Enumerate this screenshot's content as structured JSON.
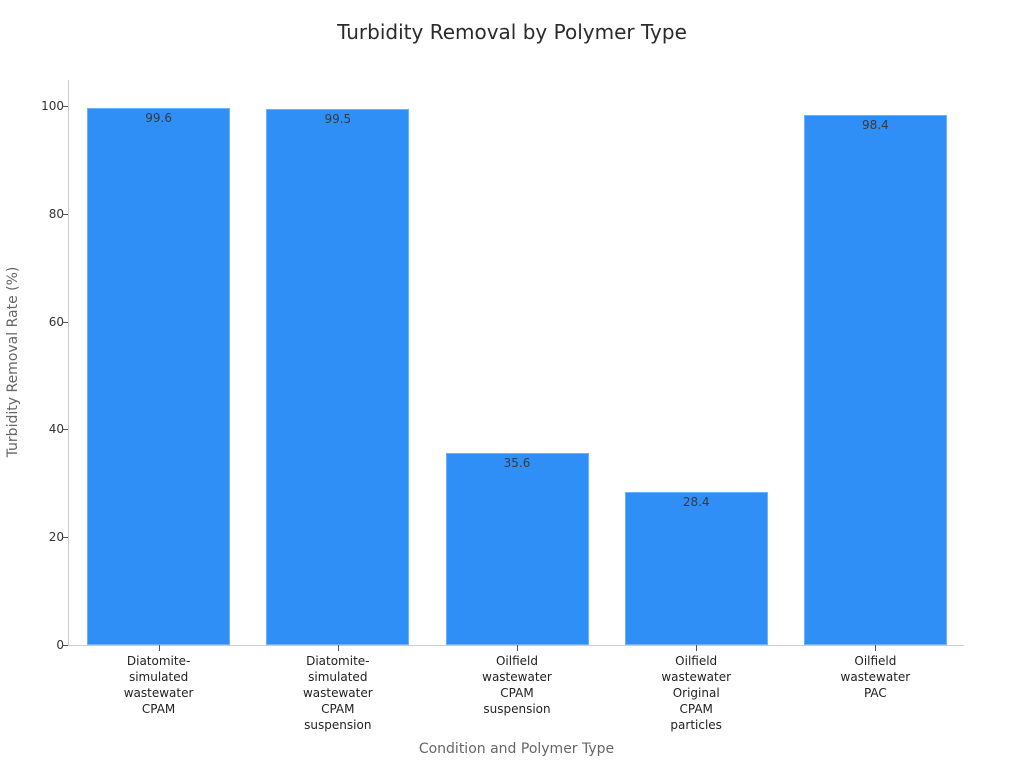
{
  "chart_data": {
    "type": "bar",
    "title": "Turbidity Removal by Polymer Type",
    "xlabel": "Condition and Polymer Type",
    "ylabel": "Turbidity Removal Rate (%)",
    "categories": [
      "Diatomite-\nsimulated\nwastewater\nCPAM",
      "Diatomite-\nsimulated\nwastewater\nCPAM\nsuspension",
      "Oilfield\nwastewater\nCPAM\nsuspension",
      "Oilfield\nwastewater\nOriginal\nCPAM\nparticles",
      "Oilfield\nwastewater\nPAC"
    ],
    "values": [
      99.6,
      99.5,
      35.6,
      28.4,
      98.4
    ],
    "value_labels": [
      "99.6",
      "99.5",
      "35.6",
      "28.4",
      "98.4"
    ],
    "ylim": [
      0,
      105
    ],
    "yticks": [
      "0",
      "20",
      "40",
      "60",
      "80",
      "100"
    ],
    "grid": false,
    "legend": null,
    "bar_color": "#2f8ff7"
  }
}
